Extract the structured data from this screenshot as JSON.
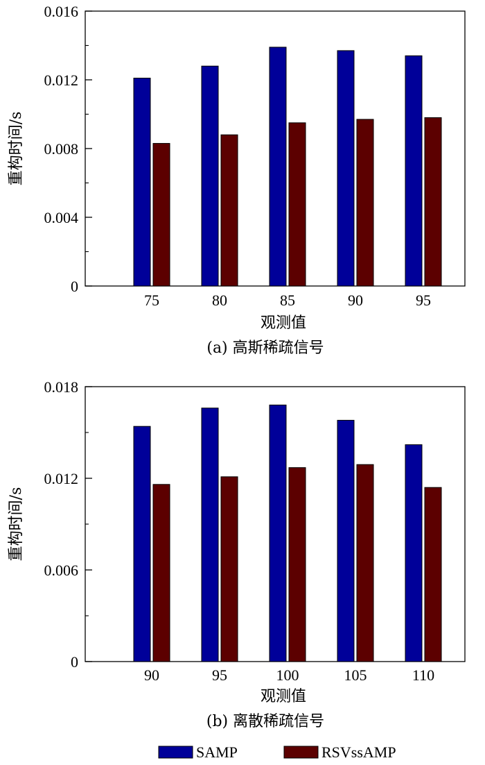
{
  "colors": {
    "samp": "#000099",
    "rsv": "#5c0000",
    "axis": "#000000"
  },
  "legend": {
    "position": "bottom",
    "items": [
      "SAMP",
      "RSVssAMP"
    ]
  },
  "chart_data": [
    {
      "type": "bar",
      "caption": "(a) 高斯稀疏信号",
      "xlabel": "观测值",
      "ylabel": "重构时间/s",
      "categories": [
        "75",
        "80",
        "85",
        "90",
        "95"
      ],
      "ylim": [
        0,
        0.016
      ],
      "yticks": [
        "0",
        "0.004",
        "0.008",
        "0.012",
        "0.016"
      ],
      "yticks_values": [
        0,
        0.004,
        0.008,
        0.012,
        0.016
      ],
      "grid": false,
      "series": [
        {
          "name": "SAMP",
          "values": [
            0.0121,
            0.0128,
            0.0139,
            0.0137,
            0.0134
          ]
        },
        {
          "name": "RSVssAMP",
          "values": [
            0.0083,
            0.0088,
            0.0095,
            0.0097,
            0.0098
          ]
        }
      ]
    },
    {
      "type": "bar",
      "caption": "(b) 离散稀疏信号",
      "xlabel": "观测值",
      "ylabel": "重构时间/s",
      "categories": [
        "90",
        "95",
        "100",
        "105",
        "110"
      ],
      "ylim": [
        0,
        0.018
      ],
      "yticks": [
        "0",
        "0.006",
        "0.012",
        "0.018"
      ],
      "yticks_values": [
        0,
        0.006,
        0.012,
        0.018
      ],
      "grid": false,
      "series": [
        {
          "name": "SAMP",
          "values": [
            0.0154,
            0.0166,
            0.0168,
            0.0158,
            0.0142
          ]
        },
        {
          "name": "RSVssAMP",
          "values": [
            0.0116,
            0.0121,
            0.0127,
            0.0129,
            0.0114
          ]
        }
      ]
    }
  ]
}
